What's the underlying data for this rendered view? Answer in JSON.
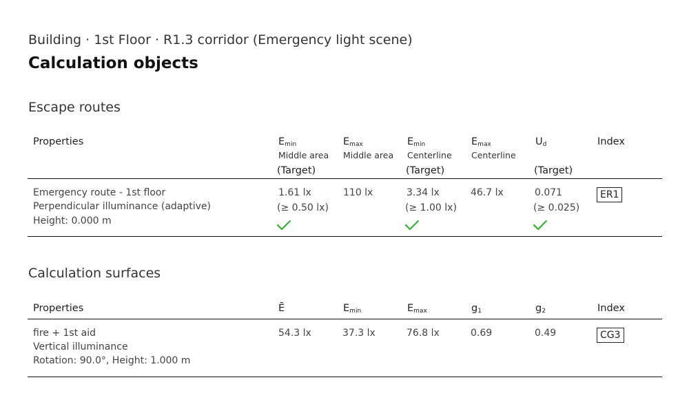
{
  "breadcrumb": "Building · 1st Floor · R1.3 corridor (Emergency light scene)",
  "page_title": "Calculation objects",
  "escape_routes": {
    "title": "Escape routes",
    "headers": {
      "properties": "Properties",
      "emin_middle": {
        "symbol": "E",
        "sub": "min",
        "label": "Middle area",
        "target": "(Target)"
      },
      "emax_middle": {
        "symbol": "E",
        "sub": "max",
        "label": "Middle area"
      },
      "emin_center": {
        "symbol": "E",
        "sub": "min",
        "label": "Centerline",
        "target": "(Target)"
      },
      "emax_center": {
        "symbol": "E",
        "sub": "max",
        "label": "Centerline"
      },
      "ud": {
        "symbol": "U",
        "sub": "d",
        "target": "(Target)"
      },
      "index": "Index"
    },
    "row": {
      "name": "Emergency route - 1st floor",
      "mode": "Perpendicular illuminance (adaptive)",
      "height": "Height: 0.000 m",
      "emin_middle": "1.61 lx",
      "emin_middle_target": "(≥ 0.50 lx)",
      "emax_middle": "110 lx",
      "emin_center": "3.34 lx",
      "emin_center_target": "(≥ 1.00 lx)",
      "emax_center": "46.7 lx",
      "ud": "0.071",
      "ud_target": "(≥ 0.025)",
      "index": "ER1"
    },
    "check_color": "#2db52d"
  },
  "calc_surfaces": {
    "title": "Calculation surfaces",
    "headers": {
      "properties": "Properties",
      "e_avg": "Ē",
      "emin": {
        "symbol": "E",
        "sub": "min"
      },
      "emax": {
        "symbol": "E",
        "sub": "max"
      },
      "g1": {
        "symbol": "g",
        "sub": "1"
      },
      "g2": {
        "symbol": "g",
        "sub": "2"
      },
      "index": "Index"
    },
    "row": {
      "name": "fire + 1st aid",
      "mode": "Vertical illuminance",
      "rotation": "Rotation: 90.0°, Height: 1.000 m",
      "e_avg": "54.3 lx",
      "emin": "37.3 lx",
      "emax": "76.8 lx",
      "g1": "0.69",
      "g2": "0.49",
      "index": "CG3"
    }
  }
}
